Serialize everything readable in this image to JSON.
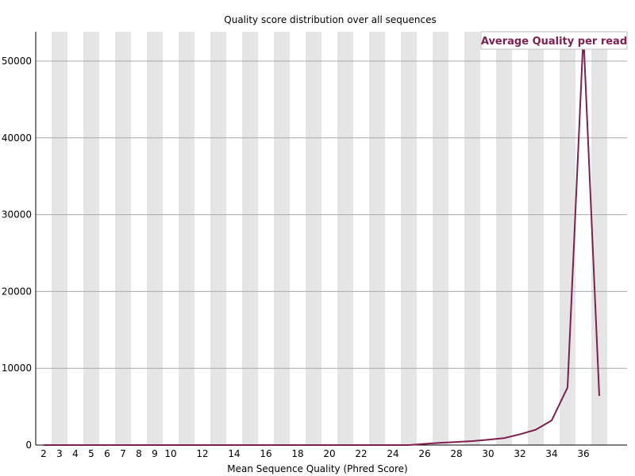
{
  "chart_data": {
    "type": "line",
    "title": "Quality score distribution over all sequences",
    "xlabel": "Mean Sequence Quality (Phred Score)",
    "ylabel": "",
    "x_tick_labels": [
      "2",
      "3",
      "4",
      "5",
      "6",
      "7",
      "8",
      "9",
      "10",
      "12",
      "14",
      "16",
      "18",
      "20",
      "22",
      "24",
      "26",
      "28",
      "30",
      "32",
      "34",
      "36"
    ],
    "y_ticks": [
      0,
      10000,
      20000,
      30000,
      40000,
      50000
    ],
    "xlim": [
      2,
      37
    ],
    "ylim": [
      0,
      54000
    ],
    "grid": "horizontal",
    "background": "alternating vertical bands",
    "legend_position": "top-right",
    "series": [
      {
        "name": "Average Quality per read",
        "color": "#7f1f4f",
        "x": [
          2,
          3,
          4,
          5,
          6,
          7,
          8,
          9,
          10,
          11,
          12,
          13,
          14,
          15,
          16,
          17,
          18,
          19,
          20,
          21,
          22,
          23,
          24,
          25,
          26,
          27,
          28,
          29,
          30,
          31,
          32,
          33,
          34,
          35,
          36,
          37
        ],
        "values": [
          0,
          0,
          0,
          0,
          0,
          0,
          0,
          0,
          0,
          0,
          0,
          0,
          0,
          0,
          0,
          0,
          0,
          0,
          0,
          0,
          0,
          0,
          0,
          0,
          150,
          300,
          400,
          520,
          700,
          900,
          1400,
          2000,
          3200,
          7500,
          53500,
          6400
        ]
      }
    ]
  }
}
